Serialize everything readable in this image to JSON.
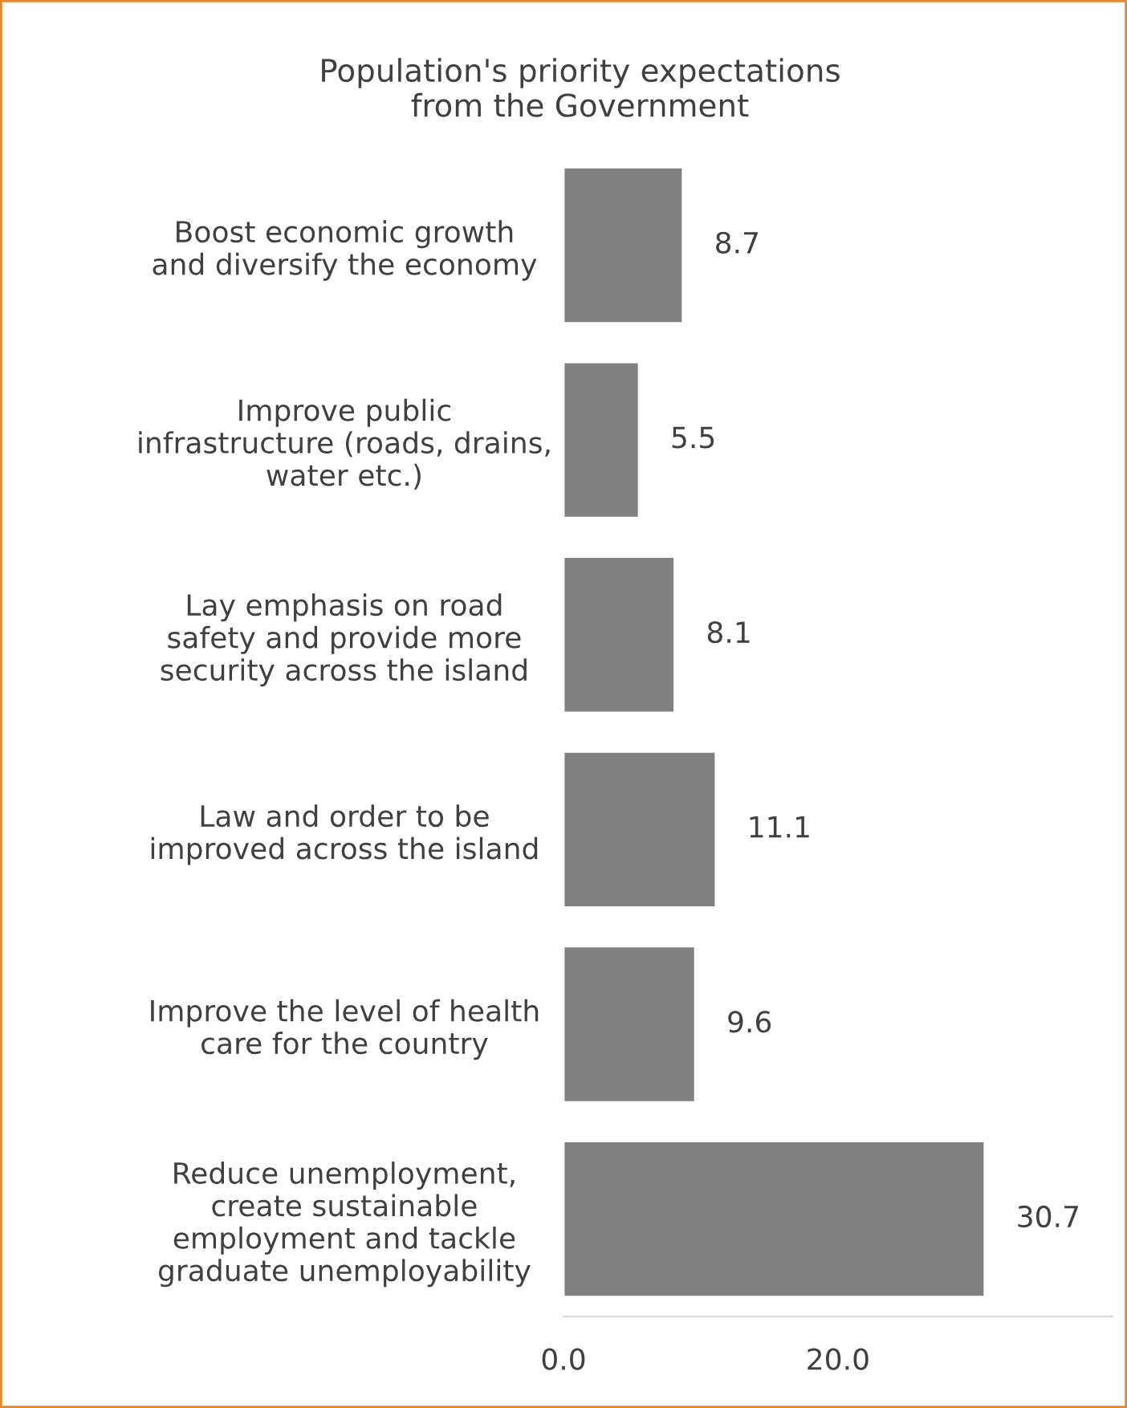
{
  "chart_data": {
    "type": "bar",
    "orientation": "horizontal",
    "title": "Population's priority expectations\nfrom the Government",
    "categories": [
      "Boost economic growth\nand diversify the economy",
      "Improve public\ninfrastructure (roads, drains,\nwater etc.)",
      "Lay emphasis on road\nsafety and provide more\nsecurity across the island",
      "Law and order to be\nimproved across the island",
      "Improve the level of health\ncare for the country",
      "Reduce unemployment,\ncreate sustainable\nemployment and tackle\ngraduate unemployability"
    ],
    "values": [
      8.7,
      5.5,
      8.1,
      11.1,
      9.6,
      30.7
    ],
    "color": "#808080",
    "xlim": [
      0,
      40
    ],
    "xticks": [
      {
        "value": 0,
        "label": "0.0"
      },
      {
        "value": 20,
        "label": "20.0"
      }
    ],
    "data_labels": true,
    "grid": false,
    "legend": false
  }
}
